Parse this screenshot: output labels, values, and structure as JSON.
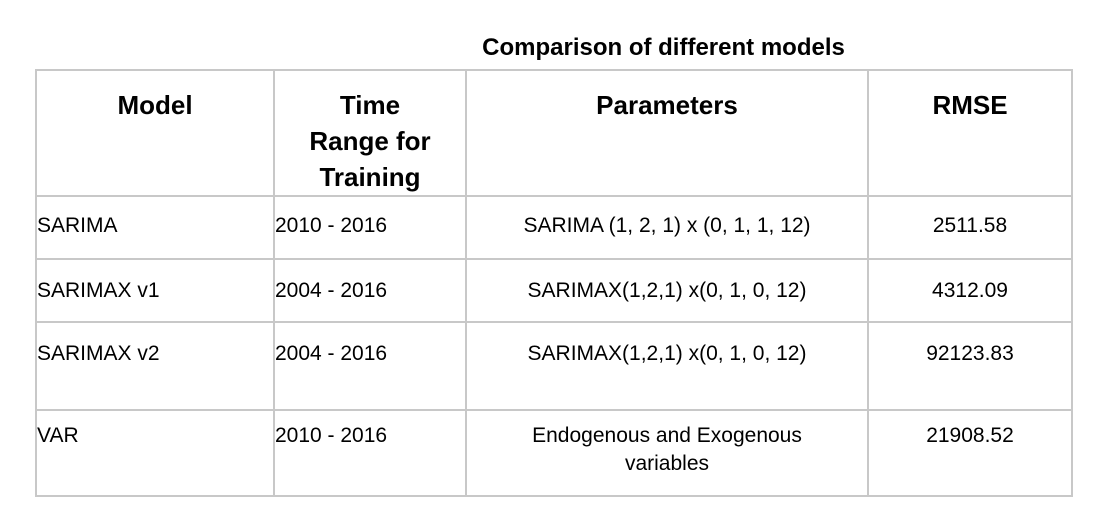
{
  "title": "Comparison of different models",
  "table": {
    "headers": {
      "model": "Model",
      "time_range_line1": "Time",
      "time_range_line2": "Range for",
      "time_range_line3": "Training",
      "parameters": "Parameters",
      "rmse": "RMSE"
    },
    "rows": [
      {
        "model": "SARIMA",
        "time_range": "2010 - 2016",
        "parameters": "SARIMA (1, 2, 1) x (0, 1, 1, 12)",
        "rmse": "2511.58"
      },
      {
        "model": "SARIMAX v1",
        "time_range": "2004 - 2016",
        "parameters": "SARIMAX(1,2,1) x(0, 1, 0, 12)",
        "rmse": "4312.09"
      },
      {
        "model": "SARIMAX v2",
        "time_range": "2004 - 2016",
        "parameters": "SARIMAX(1,2,1) x(0, 1, 0, 12)",
        "rmse": "92123.83"
      },
      {
        "model": "VAR",
        "time_range": "2010 - 2016",
        "parameters_line1": "Endogenous and Exogenous",
        "parameters_line2": "variables",
        "rmse": "21908.52"
      }
    ]
  }
}
